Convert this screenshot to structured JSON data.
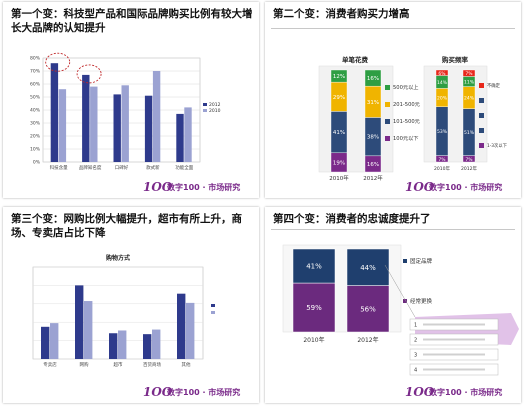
{
  "slides": [
    {
      "title": "第一个变：科技型产品和国际品牌购买比例有较大增长大品牌的认知提升",
      "logo_text": "数字100 · 市场研究",
      "chart_data": {
        "type": "bar",
        "categories": [
          "科技含量",
          "品牌知名度",
          "口碑好",
          "款式新",
          "功能全面"
        ],
        "series": [
          {
            "name": "2012",
            "values": [
              76,
              67,
              52,
              51,
              37
            ]
          },
          {
            "name": "2010",
            "values": [
              56,
              58,
              59,
              70,
              42
            ]
          }
        ],
        "ylim": [
          0,
          80
        ],
        "yticks": [
          0,
          10,
          20,
          30,
          40,
          50,
          60,
          70,
          80
        ],
        "ytick_labels": [
          "0%",
          "10%",
          "20%",
          "30%",
          "40%",
          "50%",
          "60%",
          "70%",
          "80%"
        ],
        "highlighted_categories": [
          "科技含量",
          "品牌知名度"
        ],
        "legend_position": "right",
        "colors": {
          "2012": "#2e3a8c",
          "2010": "#9ba2d2"
        }
      }
    },
    {
      "title": "第二个变：消费者购买力增高",
      "logo_text": "数字100 · 市场研究",
      "chart_data": [
        {
          "type": "bar",
          "stacked": true,
          "title": "单笔花费",
          "categories": [
            "2010年",
            "2012年"
          ],
          "series": [
            {
              "name": "100元以下",
              "values": [
                19,
                16
              ],
              "color": "#7b2a8a"
            },
            {
              "name": "101-500元",
              "values": [
                41,
                38
              ],
              "color": "#2d4b7a"
            },
            {
              "name": "201-500元",
              "values": [
                29,
                31
              ],
              "color": "#f0b400"
            },
            {
              "name": "500元以上",
              "values": [
                12,
                16
              ],
              "color": "#2e9e43"
            }
          ],
          "legend_order": [
            "500元以上",
            "201-500元",
            "101-500元",
            "100元以下"
          ],
          "legend_position": "right"
        },
        {
          "type": "bar",
          "stacked": true,
          "title": "购买频率",
          "categories": [
            "2010年",
            "2012年"
          ],
          "series": [
            {
              "name": "1-3次以下",
              "values": [
                7,
                7
              ],
              "color": "#7b2a8a"
            },
            {
              "name": "",
              "values": [
                53,
                51
              ],
              "color": "#2d4b7a"
            },
            {
              "name": "",
              "values": [
                20,
                24
              ],
              "color": "#f0b400"
            },
            {
              "name": "",
              "values": [
                14,
                11
              ],
              "color": "#2e9e43"
            },
            {
              "name": "不确定",
              "values": [
                6,
                7
              ],
              "color": "#e8271a"
            }
          ],
          "legend_order": [
            "不确定",
            "",
            "",
            "",
            "1-3次以下"
          ],
          "legend_position": "right"
        }
      ]
    },
    {
      "title": "第三个变：网购比例大幅提升，超市有所上升，商场、专卖店占比下降",
      "logo_text": "数字100 · 市场研究",
      "chart_data": {
        "type": "bar",
        "title": "购物方式",
        "categories": [
          "专卖店",
          "网购",
          "超市",
          "百货商场",
          "其他"
        ],
        "series": [
          {
            "name": "",
            "values": [
              35,
              80,
              28,
              27,
              71
            ]
          },
          {
            "name": "",
            "values": [
              39,
              63,
              31,
              32,
              61
            ]
          }
        ],
        "ylim": [
          0,
          100
        ],
        "legend_position": "right",
        "colors": [
          "#2e3a8c",
          "#9ba2d2"
        ]
      }
    },
    {
      "title": "第四个变：消费者的忠诚度提升了",
      "logo_text": "数字100 · 市场研究",
      "chart_data": {
        "type": "bar",
        "stacked": true,
        "categories": [
          "2010年",
          "2012年"
        ],
        "series": [
          {
            "name": "固定品牌",
            "values": [
              41,
              44
            ],
            "color": "#1f3f6e"
          },
          {
            "name": "经常更换",
            "values": [
              59,
              56
            ],
            "color": "#6b2a7e"
          }
        ],
        "legend_position": "right"
      },
      "reasons": [
        "1",
        "2",
        "3",
        "4"
      ]
    }
  ]
}
